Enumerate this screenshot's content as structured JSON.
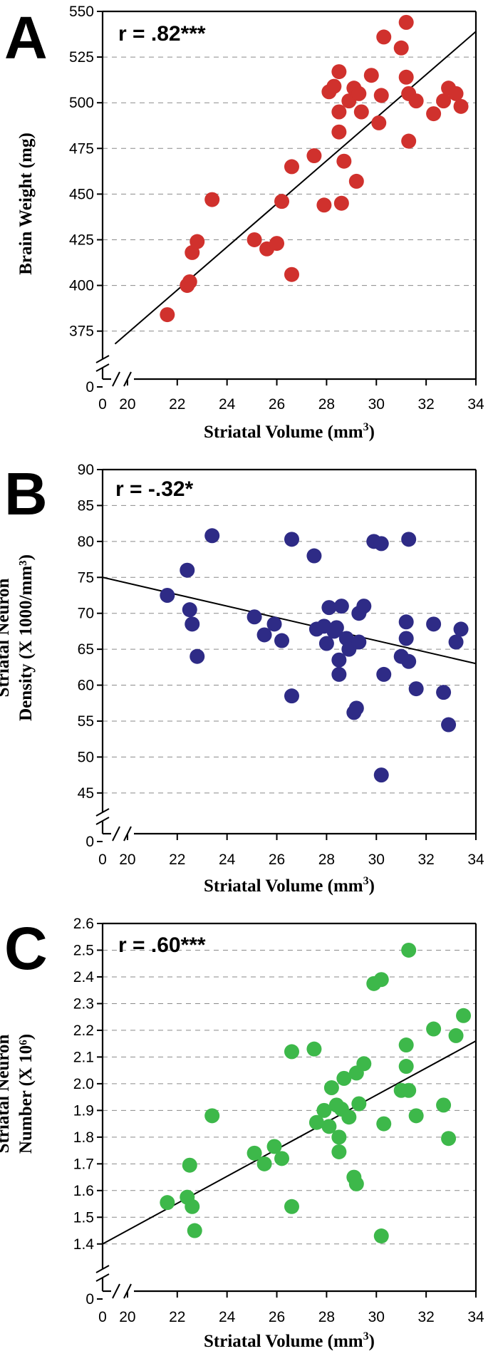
{
  "chart_data": [
    {
      "type": "scatter",
      "panel": "A",
      "annotation": "r = .82***",
      "xlabel_main": "Striatal Volume (mm",
      "xlabel_sup": "3",
      "xlabel_end": ")",
      "ylabel_lines": [
        "Brain Weight (mg)"
      ],
      "color": "#d0312d",
      "xlim": [
        19,
        34
      ],
      "ylim": [
        362,
        550
      ],
      "xticks": [
        20,
        22,
        24,
        26,
        28,
        30,
        32,
        34
      ],
      "yticks": [
        375,
        400,
        425,
        450,
        475,
        500,
        525,
        550
      ],
      "y_break_tick": 0,
      "x_break_tick": 0,
      "fit": {
        "x": [
          19.5,
          34
        ],
        "y": [
          368,
          539
        ]
      },
      "points": [
        {
          "x": 21.6,
          "y": 384
        },
        {
          "x": 22.4,
          "y": 400
        },
        {
          "x": 22.5,
          "y": 402
        },
        {
          "x": 22.6,
          "y": 418
        },
        {
          "x": 22.8,
          "y": 424
        },
        {
          "x": 23.4,
          "y": 447
        },
        {
          "x": 25.1,
          "y": 425
        },
        {
          "x": 25.6,
          "y": 420
        },
        {
          "x": 26.0,
          "y": 423
        },
        {
          "x": 26.2,
          "y": 446
        },
        {
          "x": 26.6,
          "y": 465
        },
        {
          "x": 26.6,
          "y": 406
        },
        {
          "x": 27.5,
          "y": 471
        },
        {
          "x": 27.9,
          "y": 444
        },
        {
          "x": 28.1,
          "y": 506
        },
        {
          "x": 28.3,
          "y": 509
        },
        {
          "x": 28.5,
          "y": 517
        },
        {
          "x": 28.5,
          "y": 495
        },
        {
          "x": 28.5,
          "y": 484
        },
        {
          "x": 28.6,
          "y": 445
        },
        {
          "x": 28.7,
          "y": 468
        },
        {
          "x": 28.9,
          "y": 501
        },
        {
          "x": 29.1,
          "y": 508
        },
        {
          "x": 29.2,
          "y": 457
        },
        {
          "x": 29.3,
          "y": 505
        },
        {
          "x": 29.4,
          "y": 495
        },
        {
          "x": 29.8,
          "y": 515
        },
        {
          "x": 30.1,
          "y": 489
        },
        {
          "x": 30.2,
          "y": 504
        },
        {
          "x": 30.3,
          "y": 536
        },
        {
          "x": 31.0,
          "y": 530
        },
        {
          "x": 31.2,
          "y": 544
        },
        {
          "x": 31.2,
          "y": 514
        },
        {
          "x": 31.3,
          "y": 505
        },
        {
          "x": 31.3,
          "y": 479
        },
        {
          "x": 31.6,
          "y": 501
        },
        {
          "x": 32.3,
          "y": 494
        },
        {
          "x": 32.7,
          "y": 501
        },
        {
          "x": 32.9,
          "y": 508
        },
        {
          "x": 33.2,
          "y": 505
        },
        {
          "x": 33.4,
          "y": 498
        }
      ]
    },
    {
      "type": "scatter",
      "panel": "B",
      "annotation": "r = -.32*",
      "xlabel_main": "Striatal Volume (mm",
      "xlabel_sup": "3",
      "xlabel_end": ")",
      "ylabel_lines": [
        "Striatal Neuron",
        "Density (X 1000/mm³)"
      ],
      "color": "#2e2b86",
      "xlim": [
        19,
        34
      ],
      "ylim": [
        43,
        90
      ],
      "xticks": [
        20,
        22,
        24,
        26,
        28,
        30,
        32,
        34
      ],
      "yticks": [
        45,
        50,
        55,
        60,
        65,
        70,
        75,
        80,
        85,
        90
      ],
      "y_break_tick": 0,
      "x_break_tick": 0,
      "fit": {
        "x": [
          19,
          34
        ],
        "y": [
          75,
          63
        ]
      },
      "points": [
        {
          "x": 21.6,
          "y": 72.5
        },
        {
          "x": 22.4,
          "y": 76
        },
        {
          "x": 22.5,
          "y": 70.5
        },
        {
          "x": 22.6,
          "y": 68.5
        },
        {
          "x": 22.8,
          "y": 64
        },
        {
          "x": 23.4,
          "y": 80.8
        },
        {
          "x": 25.1,
          "y": 69.5
        },
        {
          "x": 25.5,
          "y": 67
        },
        {
          "x": 25.9,
          "y": 68.5
        },
        {
          "x": 26.2,
          "y": 66.2
        },
        {
          "x": 26.6,
          "y": 80.3
        },
        {
          "x": 26.6,
          "y": 58.5
        },
        {
          "x": 27.5,
          "y": 78
        },
        {
          "x": 27.6,
          "y": 67.8
        },
        {
          "x": 27.9,
          "y": 68.2
        },
        {
          "x": 28.0,
          "y": 65.8
        },
        {
          "x": 28.1,
          "y": 70.8
        },
        {
          "x": 28.3,
          "y": 67.5
        },
        {
          "x": 28.4,
          "y": 68
        },
        {
          "x": 28.5,
          "y": 63.5
        },
        {
          "x": 28.5,
          "y": 61.5
        },
        {
          "x": 28.6,
          "y": 71
        },
        {
          "x": 28.8,
          "y": 66.5
        },
        {
          "x": 28.9,
          "y": 65
        },
        {
          "x": 29.1,
          "y": 56.2
        },
        {
          "x": 29.2,
          "y": 56.8
        },
        {
          "x": 29.3,
          "y": 70
        },
        {
          "x": 29.3,
          "y": 66
        },
        {
          "x": 29.5,
          "y": 71
        },
        {
          "x": 29.9,
          "y": 80
        },
        {
          "x": 30.2,
          "y": 79.7
        },
        {
          "x": 30.2,
          "y": 47.5
        },
        {
          "x": 30.3,
          "y": 61.5
        },
        {
          "x": 31.0,
          "y": 64
        },
        {
          "x": 31.2,
          "y": 68.8
        },
        {
          "x": 31.2,
          "y": 66.5
        },
        {
          "x": 31.3,
          "y": 80.3
        },
        {
          "x": 31.3,
          "y": 63.3
        },
        {
          "x": 31.6,
          "y": 59.5
        },
        {
          "x": 32.3,
          "y": 68.5
        },
        {
          "x": 32.7,
          "y": 59
        },
        {
          "x": 32.9,
          "y": 54.5
        },
        {
          "x": 33.2,
          "y": 66
        },
        {
          "x": 33.4,
          "y": 67.8
        }
      ]
    },
    {
      "type": "scatter",
      "panel": "C",
      "annotation": "r = .60***",
      "xlabel_main": "Striatal Volume (mm",
      "xlabel_sup": "3",
      "xlabel_end": ")",
      "ylabel_lines": [
        "Striatal Neuron",
        "Number (X 10⁶)"
      ],
      "color": "#3db84a",
      "xlim": [
        19,
        34
      ],
      "ylim": [
        1.33,
        2.6
      ],
      "xticks": [
        20,
        22,
        24,
        26,
        28,
        30,
        32,
        34
      ],
      "yticks": [
        1.4,
        1.5,
        1.6,
        1.7,
        1.8,
        1.9,
        2.0,
        2.1,
        2.2,
        2.3,
        2.4,
        2.5,
        2.6
      ],
      "ytick_labels": [
        "1.4",
        "1.5",
        "1.6",
        "1.7",
        "1.8",
        "1.9",
        "2.0",
        "2.1",
        "2.2",
        "2.3",
        "2.4",
        "2.5",
        "2.6"
      ],
      "y_break_tick": 0,
      "x_break_tick": 0,
      "fit": {
        "x": [
          19,
          34
        ],
        "y": [
          1.4,
          2.16
        ]
      },
      "points": [
        {
          "x": 21.6,
          "y": 1.555
        },
        {
          "x": 22.4,
          "y": 1.575
        },
        {
          "x": 22.5,
          "y": 1.695
        },
        {
          "x": 22.6,
          "y": 1.54
        },
        {
          "x": 22.7,
          "y": 1.45
        },
        {
          "x": 23.4,
          "y": 1.88
        },
        {
          "x": 25.1,
          "y": 1.74
        },
        {
          "x": 25.5,
          "y": 1.7
        },
        {
          "x": 25.9,
          "y": 1.765
        },
        {
          "x": 26.2,
          "y": 1.72
        },
        {
          "x": 26.6,
          "y": 2.12
        },
        {
          "x": 26.6,
          "y": 1.54
        },
        {
          "x": 27.5,
          "y": 2.13
        },
        {
          "x": 27.6,
          "y": 1.855
        },
        {
          "x": 27.9,
          "y": 1.9
        },
        {
          "x": 28.1,
          "y": 1.84
        },
        {
          "x": 28.2,
          "y": 1.985
        },
        {
          "x": 28.4,
          "y": 1.92
        },
        {
          "x": 28.5,
          "y": 1.8
        },
        {
          "x": 28.5,
          "y": 1.745
        },
        {
          "x": 28.6,
          "y": 1.905
        },
        {
          "x": 28.7,
          "y": 2.02
        },
        {
          "x": 28.9,
          "y": 1.875
        },
        {
          "x": 29.1,
          "y": 1.65
        },
        {
          "x": 29.2,
          "y": 1.625
        },
        {
          "x": 29.2,
          "y": 2.04
        },
        {
          "x": 29.3,
          "y": 1.925
        },
        {
          "x": 29.5,
          "y": 2.075
        },
        {
          "x": 29.9,
          "y": 2.375
        },
        {
          "x": 30.2,
          "y": 2.39
        },
        {
          "x": 30.2,
          "y": 1.43
        },
        {
          "x": 30.3,
          "y": 1.85
        },
        {
          "x": 31.0,
          "y": 1.975
        },
        {
          "x": 31.2,
          "y": 2.145
        },
        {
          "x": 31.2,
          "y": 2.065
        },
        {
          "x": 31.3,
          "y": 2.5
        },
        {
          "x": 31.3,
          "y": 1.975
        },
        {
          "x": 31.6,
          "y": 1.88
        },
        {
          "x": 32.3,
          "y": 2.205
        },
        {
          "x": 32.7,
          "y": 1.92
        },
        {
          "x": 32.9,
          "y": 1.795
        },
        {
          "x": 33.2,
          "y": 2.18
        },
        {
          "x": 33.5,
          "y": 2.255
        }
      ]
    }
  ]
}
